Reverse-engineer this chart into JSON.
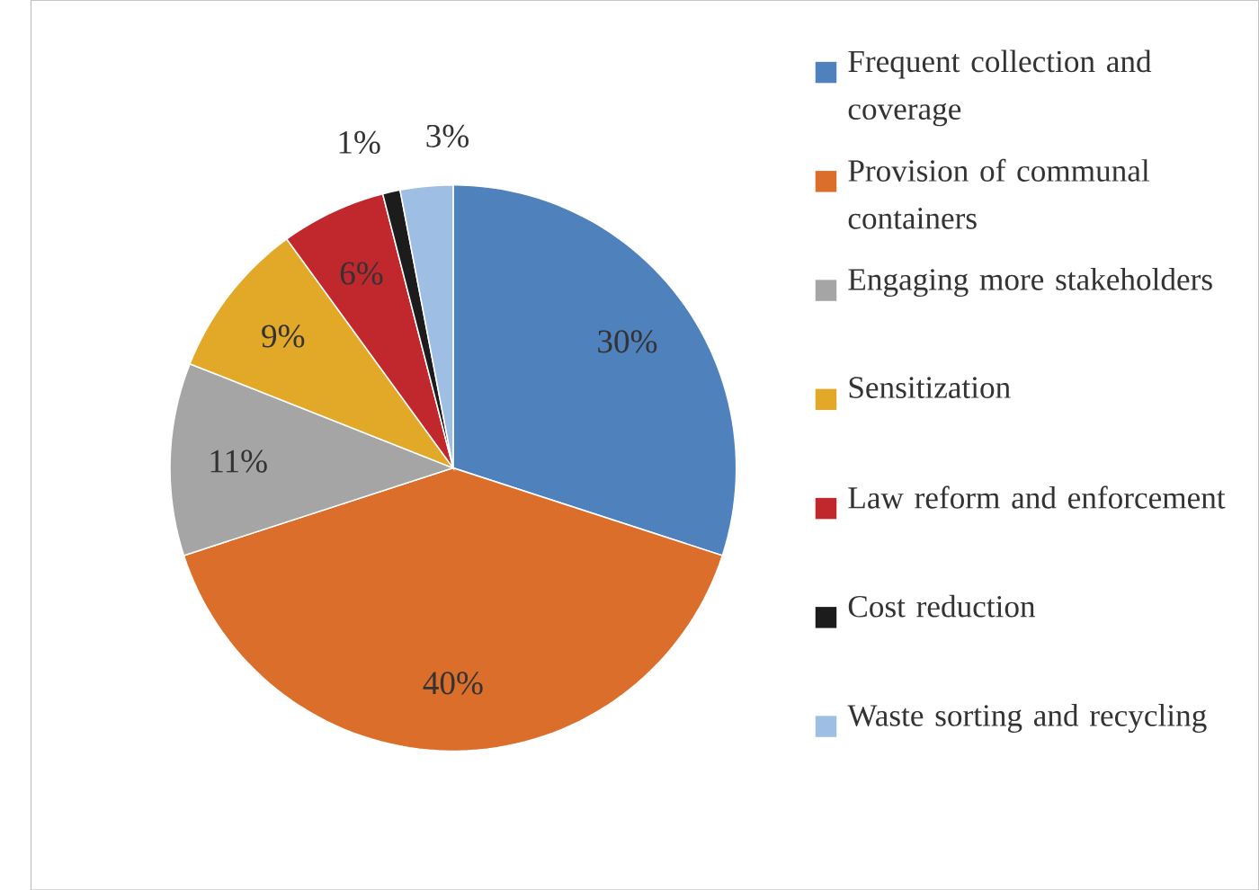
{
  "chart_data": {
    "type": "pie",
    "categories": [
      "Frequent collection and coverage",
      "Provision of communal containers",
      "Engaging more stakeholders",
      "Sensitization",
      "Law reform and enforcement",
      "Cost reduction",
      "Waste sorting and recycling"
    ],
    "values": [
      30,
      40,
      11,
      9,
      6,
      1,
      3
    ],
    "colors": [
      "#4f81bd",
      "#dc6e2b",
      "#a5a5a5",
      "#e2a828",
      "#c0282d",
      "#1c1c1c",
      "#9ebfe3"
    ],
    "value_labels": [
      "30%",
      "40%",
      "11%",
      "9%",
      "6%",
      "1%",
      "3%"
    ],
    "legend": "right"
  }
}
